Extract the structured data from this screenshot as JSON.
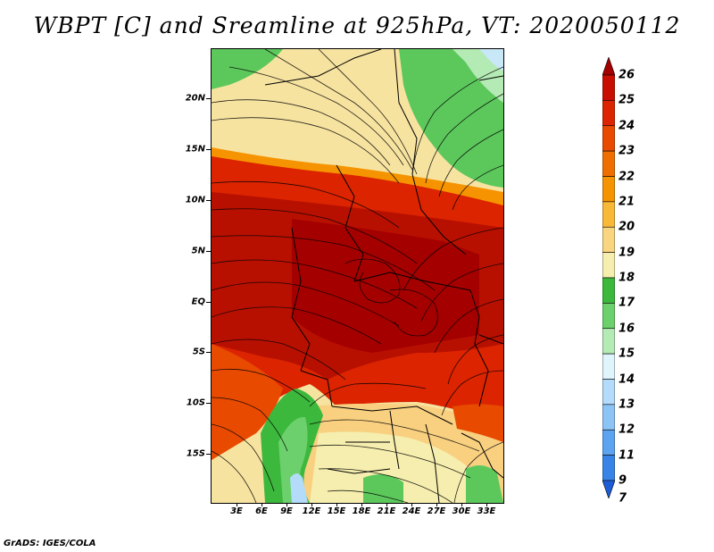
{
  "title": "WBPT [C] and Sreamline at 925hPa, VT: 2020050112",
  "credit": "GrADS: IGES/COLA",
  "map": {
    "lat_labels": [
      "20N",
      "15N",
      "10N",
      "5N",
      "EQ",
      "5S",
      "10S",
      "15S"
    ],
    "lon_labels": [
      "3E",
      "6E",
      "9E",
      "12E",
      "15E",
      "18E",
      "21E",
      "24E",
      "27E",
      "30E",
      "33E"
    ]
  },
  "legend": {
    "labels": [
      "26",
      "25",
      "24",
      "23",
      "22",
      "21",
      "20",
      "19",
      "18",
      "17",
      "16",
      "15",
      "14",
      "13",
      "12",
      "11",
      "9",
      "7"
    ],
    "colors": [
      "#a50000",
      "#c80e00",
      "#dc2400",
      "#e84a00",
      "#ef6e00",
      "#f59400",
      "#f8b838",
      "#fad580",
      "#f6eeae",
      "#3cb83c",
      "#6cd06c",
      "#b4eab4",
      "#e0f4fc",
      "#b4dcfa",
      "#8cc4f6",
      "#5ca4f0",
      "#3884e6",
      "#1c5cd6"
    ]
  }
}
